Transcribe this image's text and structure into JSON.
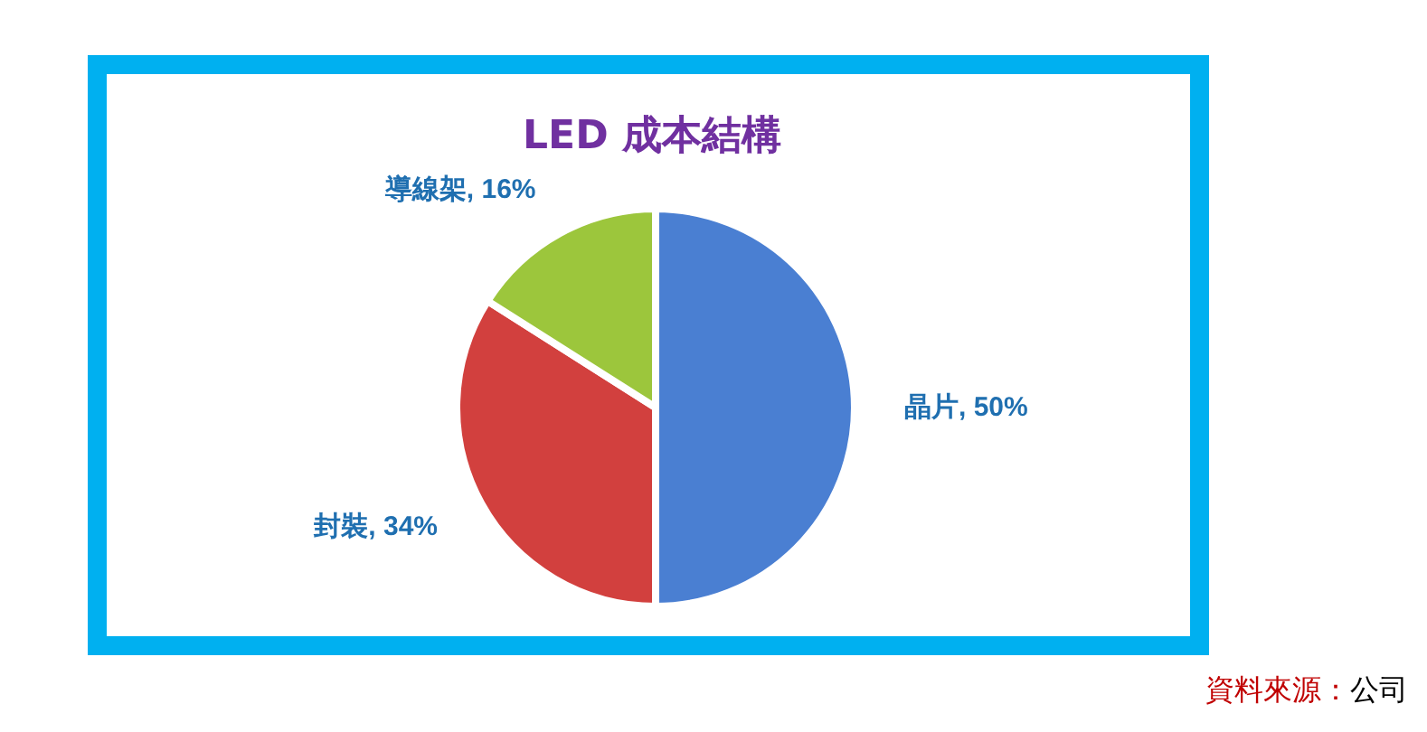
{
  "chart_data": {
    "type": "pie",
    "title": "LED 成本結構",
    "categories": [
      "晶片",
      "封裝",
      "導線架"
    ],
    "values": [
      50,
      34,
      16
    ],
    "value_labels": [
      "50%",
      "34%",
      "16%"
    ],
    "colors": [
      "#4a7fd2",
      "#d2403e",
      "#9cc63c"
    ],
    "annotations": [
      "資料來源：",
      "公司"
    ]
  }
}
